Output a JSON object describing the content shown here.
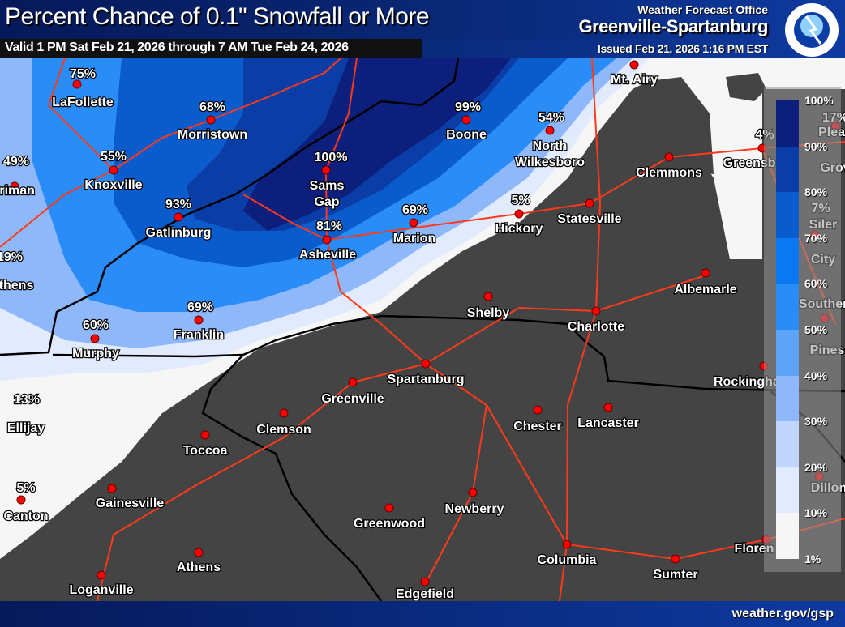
{
  "header": {
    "title": "Percent Chance of 0.1\" Snowfall or More",
    "valid": "Valid 1 PM Sat Feb 21, 2026 through 7 AM Tue Feb 24, 2026",
    "wfo_label": "Weather Forecast Office",
    "office": "Greenville-Spartanburg",
    "issued": "Issued Feb 21, 2026 1:16 PM EST",
    "logo_text": "NATIONAL WEATHER SERVICE"
  },
  "footer": {
    "url": "weather.gov/gsp"
  },
  "legend": {
    "ticks": [
      "100%",
      "90%",
      "80%",
      "70%",
      "60%",
      "50%",
      "40%",
      "30%",
      "20%",
      "10%",
      "1%"
    ],
    "colors": [
      "#0c1f7c",
      "#0a3ea6",
      "#0a5ccc",
      "#0a78f0",
      "#2a8cf6",
      "#5ea3f8",
      "#8fb8fa",
      "#bfd5fc",
      "#e2ebfd",
      "#f6f6f6"
    ]
  },
  "colors": {
    "no_snow": "#444444",
    "city_dot": "#ff0000",
    "roads": "#ff3a1a",
    "borders": "#000000"
  },
  "cities": [
    {
      "name": "LaFollette",
      "pct": "75%"
    },
    {
      "name": "Morristown",
      "pct": "68%"
    },
    {
      "name": "Knoxville",
      "pct": "55%"
    },
    {
      "name": "rriman",
      "pct": "49%"
    },
    {
      "name": "Gatlinburg",
      "pct": "93%"
    },
    {
      "name": "Sams Gap",
      "pct": "100%"
    },
    {
      "name": "Asheville",
      "pct": "81%"
    },
    {
      "name": "Boone",
      "pct": "99%"
    },
    {
      "name": "Marion",
      "pct": "69%"
    },
    {
      "name": "North Wilkesboro",
      "pct": "54%"
    },
    {
      "name": "Hickory",
      "pct": "5%"
    },
    {
      "name": "Statesville",
      "pct": ""
    },
    {
      "name": "Clemmons",
      "pct": ""
    },
    {
      "name": "Greensboro",
      "pct": "4%"
    },
    {
      "name": "Mt. Airy",
      "pct": ""
    },
    {
      "name": "Pleas Grov",
      "pct": "17%"
    },
    {
      "name": "Siler City",
      "pct": "7%"
    },
    {
      "name": "thens",
      "pct": "19%"
    },
    {
      "name": "Murphy",
      "pct": "60%"
    },
    {
      "name": "Franklin",
      "pct": "69%"
    },
    {
      "name": "Shelby",
      "pct": ""
    },
    {
      "name": "Charlotte",
      "pct": ""
    },
    {
      "name": "Albemarle",
      "pct": ""
    },
    {
      "name": "Southern Pines",
      "pct": ""
    },
    {
      "name": "Spartanburg",
      "pct": ""
    },
    {
      "name": "Greenville",
      "pct": ""
    },
    {
      "name": "Rockingham",
      "pct": ""
    },
    {
      "name": "Ellijay",
      "pct": "13%"
    },
    {
      "name": "Clemson",
      "pct": ""
    },
    {
      "name": "Chester",
      "pct": ""
    },
    {
      "name": "Lancaster",
      "pct": ""
    },
    {
      "name": "Toccoa",
      "pct": ""
    },
    {
      "name": "Canton",
      "pct": "5%"
    },
    {
      "name": "Dillon",
      "pct": ""
    },
    {
      "name": "Gainesville",
      "pct": ""
    },
    {
      "name": "Newberry",
      "pct": ""
    },
    {
      "name": "Greenwood",
      "pct": ""
    },
    {
      "name": "Floren",
      "pct": ""
    },
    {
      "name": "Columbia",
      "pct": ""
    },
    {
      "name": "Athens",
      "pct": ""
    },
    {
      "name": "Sumter",
      "pct": ""
    },
    {
      "name": "Loganville",
      "pct": ""
    },
    {
      "name": "Edgefield",
      "pct": ""
    }
  ]
}
